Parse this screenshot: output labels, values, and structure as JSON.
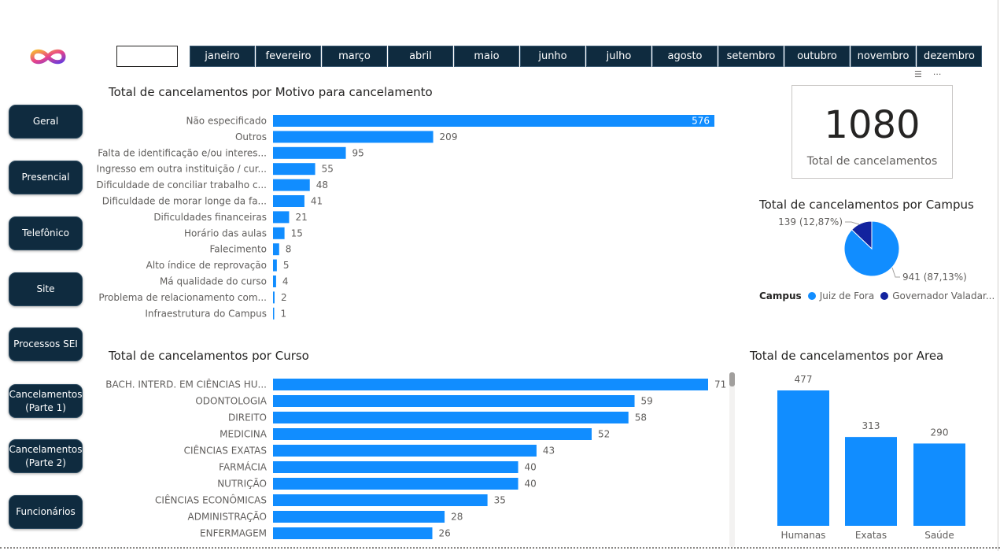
{
  "colors": {
    "bar": "#118dff",
    "dark_blue": "#12239e",
    "nav_bg": "#0f2b3f"
  },
  "nav": {
    "items": [
      {
        "label": "Geral"
      },
      {
        "label": "Presencial"
      },
      {
        "label": "Telefônico"
      },
      {
        "label": "Site"
      },
      {
        "label": "Processos SEI"
      },
      {
        "label": "Cancelamentos\n(Parte 1)"
      },
      {
        "label": "Cancelamentos\n(Parte 2)"
      },
      {
        "label": "Funcionários"
      }
    ]
  },
  "months": [
    "janeiro",
    "fevereiro",
    "março",
    "abril",
    "maio",
    "junho",
    "julho",
    "agosto",
    "setembro",
    "outubro",
    "novembro",
    "dezembro"
  ],
  "kpi": {
    "value": "1080",
    "label": "Total de cancelamentos"
  },
  "titles": {
    "motivo": "Total de cancelamentos por Motivo para cancelamento",
    "campus": "Total de cancelamentos por Campus",
    "curso": "Total de cancelamentos por Curso",
    "area": "Total de cancelamentos por Area"
  },
  "legend": {
    "title": "Campus",
    "items": [
      "Juiz de Fora",
      "Governador Valadar..."
    ]
  },
  "chart_data": [
    {
      "type": "bar",
      "orientation": "horizontal",
      "title": "Total de cancelamentos por Motivo para cancelamento",
      "categories": [
        "Não especificado",
        "Outros",
        "Falta de identificação e/ou interes...",
        "Ingresso em outra instituição / cur...",
        "Dificuldade de conciliar trabalho c...",
        "Dificuldade de morar longe da fa...",
        "Dificuldades financeiras",
        "Horário das aulas",
        "Falecimento",
        "Alto índice de reprovação",
        "Má qualidade do curso",
        "Problema de relacionamento com...",
        "Infraestrutura do Campus"
      ],
      "values": [
        576,
        209,
        95,
        55,
        48,
        41,
        21,
        15,
        8,
        5,
        4,
        2,
        1
      ]
    },
    {
      "type": "pie",
      "title": "Total de cancelamentos por Campus",
      "categories": [
        "Juiz de Fora",
        "Governador Valadar..."
      ],
      "values": [
        941,
        139
      ],
      "labels": [
        "941 (87,13%)",
        "139 (12,87%)"
      ]
    },
    {
      "type": "bar",
      "orientation": "horizontal",
      "title": "Total de cancelamentos por Curso",
      "categories": [
        "BACH. INTERD. EM CIÊNCIAS HU...",
        "ODONTOLOGIA",
        "DIREITO",
        "MEDICINA",
        "CIÊNCIAS EXATAS",
        "FARMÁCIA",
        "NUTRIÇÃO",
        "CIÊNCIAS ECONÔMICAS",
        "ADMINISTRAÇÃO",
        "ENFERMAGEM"
      ],
      "values": [
        71,
        59,
        58,
        52,
        43,
        40,
        40,
        35,
        28,
        26
      ]
    },
    {
      "type": "bar",
      "orientation": "vertical",
      "title": "Total de cancelamentos por Area",
      "categories": [
        "Humanas",
        "Exatas",
        "Saúde"
      ],
      "values": [
        477,
        313,
        290
      ]
    }
  ]
}
